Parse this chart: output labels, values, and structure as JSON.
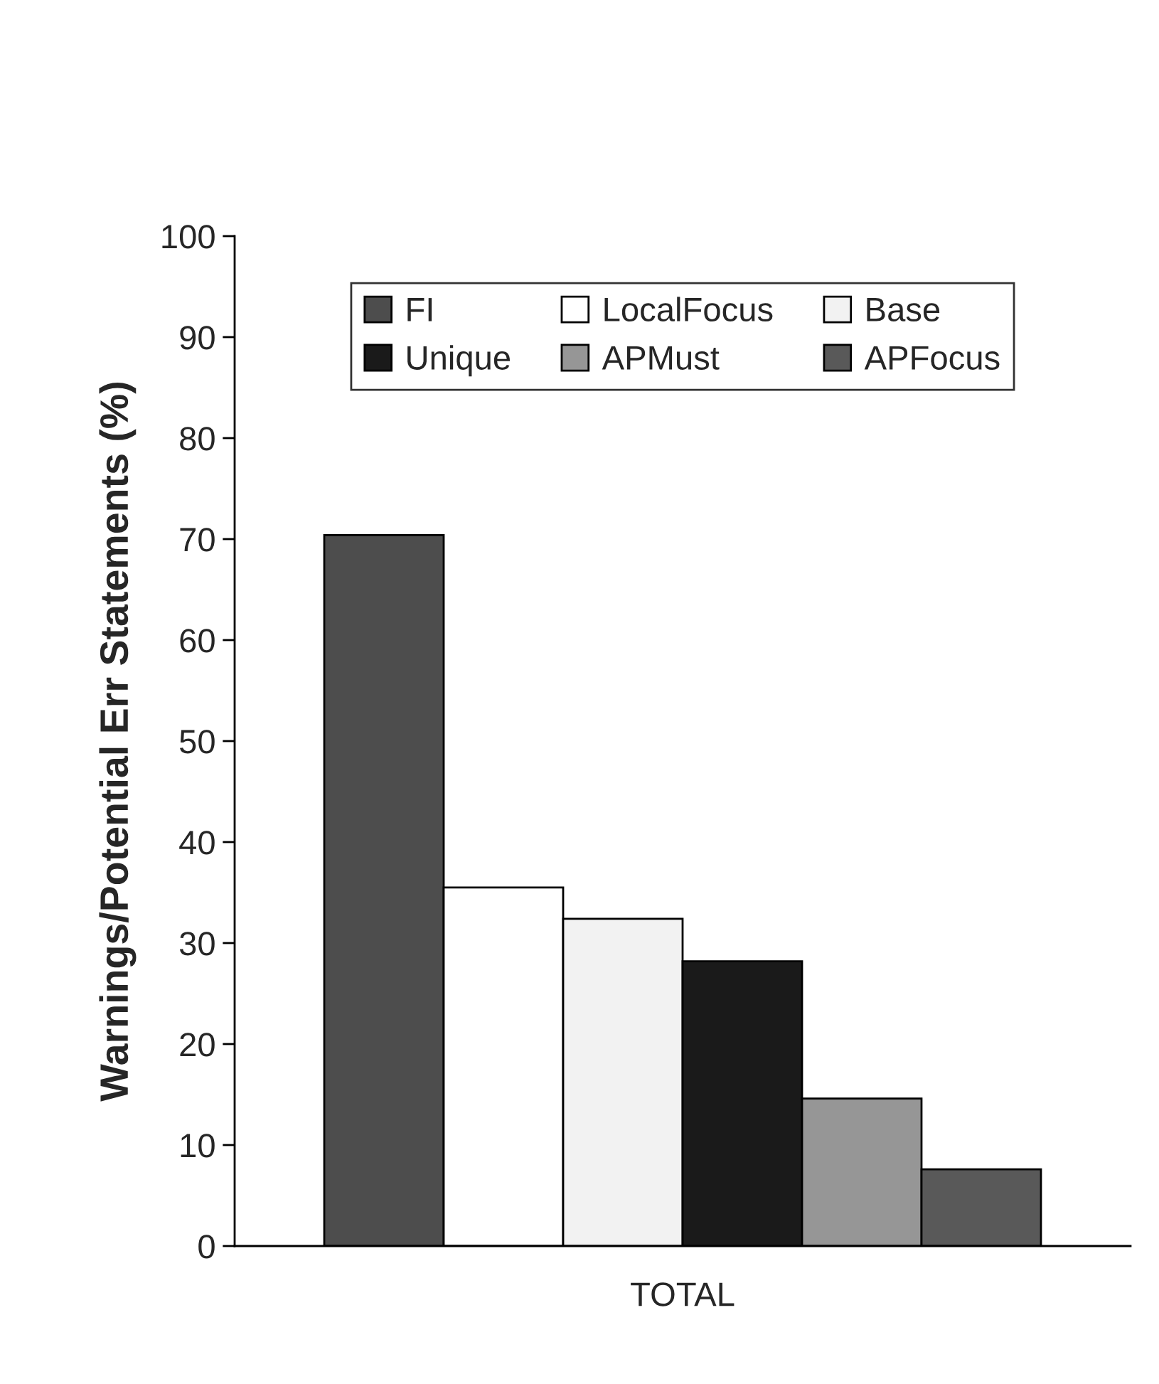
{
  "chart_data": {
    "type": "bar",
    "ylabel": "Warnings/Potential Err Statements (%)",
    "categories": [
      "TOTAL"
    ],
    "series": [
      {
        "name": "FI",
        "color": "#4d4d4d",
        "values": [
          70.4
        ]
      },
      {
        "name": "LocalFocus",
        "color": "#ffffff",
        "values": [
          35.5
        ]
      },
      {
        "name": "Base",
        "color": "#f2f2f2",
        "values": [
          32.4
        ]
      },
      {
        "name": "Unique",
        "color": "#1a1a1a",
        "values": [
          28.2
        ]
      },
      {
        "name": "APMust",
        "color": "#969696",
        "values": [
          14.6
        ]
      },
      {
        "name": "APFocus",
        "color": "#595959",
        "values": [
          7.6
        ]
      }
    ],
    "ylim": [
      0,
      100
    ],
    "yticks": [
      0,
      10,
      20,
      30,
      40,
      50,
      60,
      70,
      80,
      90,
      100
    ],
    "grid": false,
    "legend": "top"
  }
}
